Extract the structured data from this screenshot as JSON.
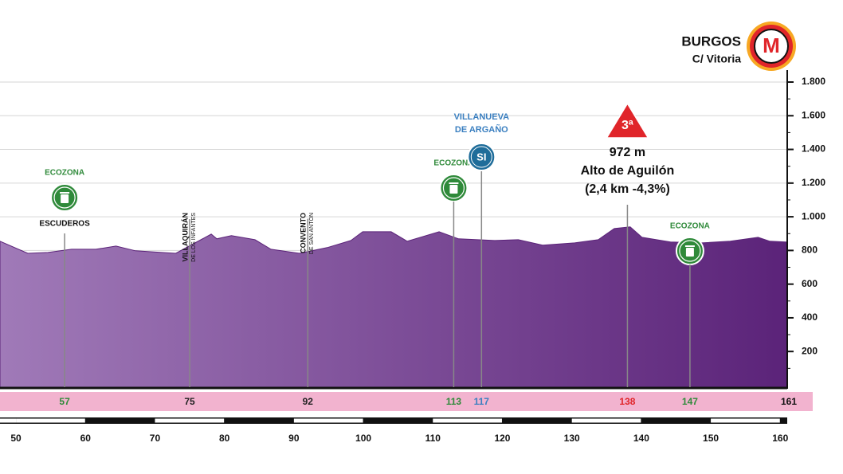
{
  "chart_data": {
    "type": "area",
    "color": "#5b2379",
    "grid": true,
    "x": [
      47.7,
      51.7,
      54.6,
      58,
      61.5,
      64.4,
      67.2,
      73,
      78.1,
      78.9,
      81,
      84.4,
      86.7,
      90.8,
      94.8,
      98.2,
      99.9,
      104,
      106.3,
      110.9,
      113.7,
      118.9,
      122.3,
      125.8,
      130.4,
      133.8,
      136.1,
      138.4,
      140.1,
      144.2,
      148.7,
      152.8,
      156.8,
      158.5,
      161
    ],
    "values": [
      855,
      783,
      788,
      807,
      807,
      826,
      798,
      783,
      897,
      869,
      888,
      864,
      807,
      783,
      817,
      859,
      911,
      911,
      855,
      911,
      869,
      859,
      864,
      831,
      845,
      864,
      930,
      940,
      878,
      850,
      845,
      855,
      878,
      855,
      850
    ],
    "xlim": [
      47.7,
      161
    ],
    "xticks": [
      50,
      60,
      70,
      80,
      90,
      100,
      110,
      120,
      130,
      140,
      150,
      160
    ],
    "ylim": [
      0,
      1800
    ],
    "yticks": [
      200,
      400,
      600,
      800,
      {
        "value": 1000,
        "label": "1.000"
      },
      {
        "value": 1200,
        "label": "1.200"
      },
      {
        "value": 1400,
        "label": "1.400"
      },
      {
        "value": 1600,
        "label": "1.600"
      },
      {
        "value": 1800,
        "label": "1.800"
      }
    ],
    "waypoints": [
      {
        "km": 57,
        "color": "#2f8a3a",
        "kind": "ecozona",
        "label": "ECOZONA",
        "place": "ESCUDEROS"
      },
      {
        "km": 75,
        "color": "#222222",
        "kind": "town",
        "lines": [
          "VILLAQUIRÁN",
          "DE LOS INFANTES"
        ]
      },
      {
        "km": 92,
        "color": "#222222",
        "kind": "town",
        "lines": [
          "CONVENTO",
          "DE SAN ANTÓN"
        ]
      },
      {
        "km": 113,
        "color": "#2f8a3a",
        "kind": "ecozona",
        "label": "ECOZONA"
      },
      {
        "km": 117,
        "color": "#3a7fc0",
        "kind": "sprint",
        "lines": [
          "VILLANUEVA",
          "DE ARGAÑO"
        ],
        "badge": "SI"
      },
      {
        "km": 138,
        "color": "#e0252a",
        "kind": "climb",
        "badge": "3ª",
        "lines": [
          "972 m",
          "Alto de Aguilón",
          "(2,4 km -4,3%)"
        ]
      },
      {
        "km": 147,
        "color": "#2f8a3a",
        "kind": "ecozona",
        "label": "ECOZONA"
      },
      {
        "km": 161,
        "color": "#111111",
        "kind": "finish",
        "lines": [
          "BURGOS",
          "C/ Vitoria"
        ],
        "badge": "M"
      }
    ]
  }
}
